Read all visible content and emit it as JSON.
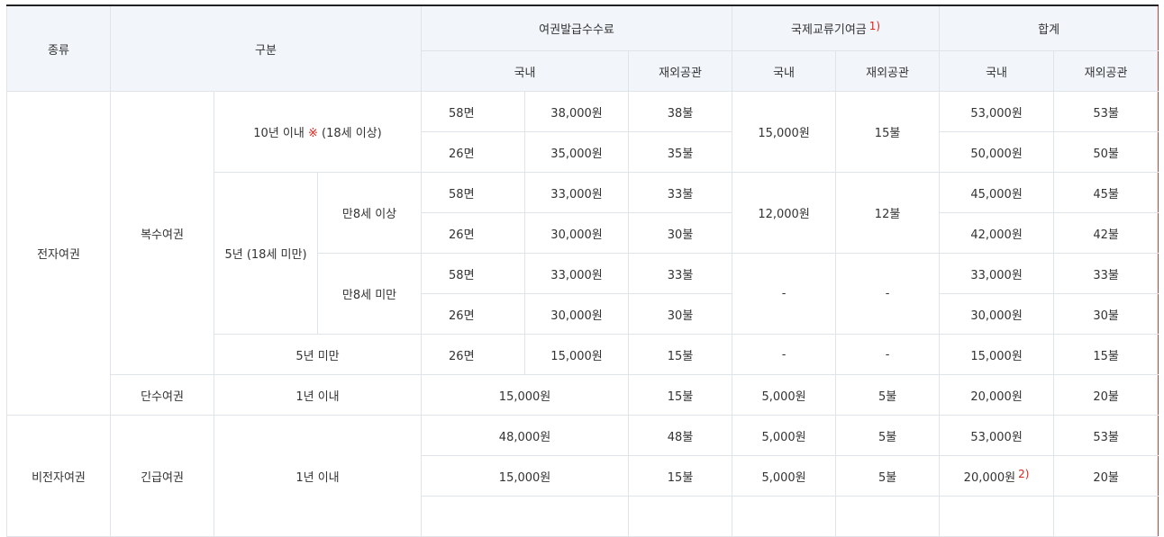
{
  "headers": {
    "type": "종류",
    "category": "구분",
    "issuance_fee": "여권발급수수료",
    "intl_exchange_fee": "국제교류기여금",
    "intl_exchange_note": "1)",
    "total": "합계",
    "domestic": "국내",
    "overseas": "재외공관"
  },
  "labels": {
    "electronic": "전자여권",
    "non_electronic": "비전자여권",
    "multiple": "복수여권",
    "single": "단수여권",
    "emergency": "긴급여권",
    "ten_years": "10년 이내",
    "ten_years_mark": "※",
    "ten_years_age": "(18세 이상)",
    "five_years_under18": "5년 (18세 미만)",
    "age8_over": "만8세 이상",
    "age8_under": "만8세 미만",
    "under5": "5년 미만",
    "within1": "1년 이내"
  },
  "rows": {
    "r1": {
      "pages": "58면",
      "dom_fee": "38,000원",
      "ovs_fee": "38불",
      "total_dom": "53,000원",
      "total_ovs": "53불"
    },
    "r2": {
      "pages": "26면",
      "dom_fee": "35,000원",
      "ovs_fee": "35불",
      "total_dom": "50,000원",
      "total_ovs": "50불"
    },
    "r12_contrib": {
      "dom": "15,000원",
      "ovs": "15불"
    },
    "r3": {
      "pages": "58면",
      "dom_fee": "33,000원",
      "ovs_fee": "33불",
      "total_dom": "45,000원",
      "total_ovs": "45불"
    },
    "r4": {
      "pages": "26면",
      "dom_fee": "30,000원",
      "ovs_fee": "30불",
      "total_dom": "42,000원",
      "total_ovs": "42불"
    },
    "r34_contrib": {
      "dom": "12,000원",
      "ovs": "12불"
    },
    "r5": {
      "pages": "58면",
      "dom_fee": "33,000원",
      "ovs_fee": "33불",
      "total_dom": "33,000원",
      "total_ovs": "33불"
    },
    "r6": {
      "pages": "26면",
      "dom_fee": "30,000원",
      "ovs_fee": "30불",
      "total_dom": "30,000원",
      "total_ovs": "30불"
    },
    "r56_contrib": {
      "dom": "-",
      "ovs": "-"
    },
    "r7": {
      "pages": "26면",
      "dom_fee": "15,000원",
      "ovs_fee": "15불",
      "contrib_dom": "-",
      "contrib_ovs": "-",
      "total_dom": "15,000원",
      "total_ovs": "15불"
    },
    "r8": {
      "dom_fee": "15,000원",
      "ovs_fee": "15불",
      "contrib_dom": "5,000원",
      "contrib_ovs": "5불",
      "total_dom": "20,000원",
      "total_ovs": "20불"
    },
    "r9": {
      "dom_fee": "48,000원",
      "ovs_fee": "48불",
      "contrib_dom": "5,000원",
      "contrib_ovs": "5불",
      "total_dom": "53,000원",
      "total_ovs": "53불"
    },
    "r10": {
      "dom_fee": "15,000원",
      "ovs_fee": "15불",
      "contrib_dom": "5,000원",
      "contrib_ovs": "5불",
      "total_dom": "20,000원",
      "total_dom_note": "2)",
      "total_ovs": "20불"
    }
  }
}
